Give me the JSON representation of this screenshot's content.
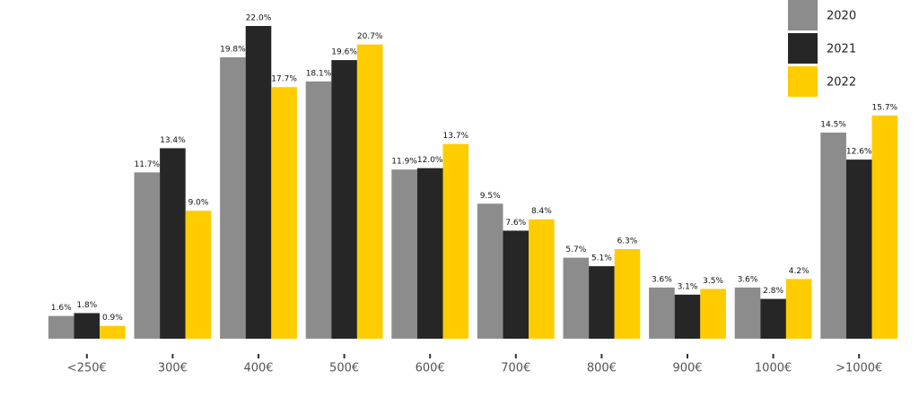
{
  "chart_data": {
    "type": "bar",
    "categories": [
      "<250€",
      "300€",
      "400€",
      "500€",
      "600€",
      "700€",
      "800€",
      "900€",
      "1000€",
      ">1000€"
    ],
    "series": [
      {
        "name": "2020",
        "color": "#8c8c8c",
        "values": [
          1.6,
          11.7,
          19.8,
          18.1,
          11.9,
          9.5,
          5.7,
          3.6,
          3.6,
          14.5
        ],
        "value_labels": [
          "1.6%",
          "11.7%",
          "19.8%",
          "18.1%",
          "11.9%",
          "9.5%",
          "5.7%",
          "3.6%",
          "3.6%",
          "14.5%"
        ]
      },
      {
        "name": "2021",
        "color": "#262626",
        "values": [
          1.8,
          13.4,
          22.0,
          19.6,
          12.0,
          7.6,
          5.1,
          3.1,
          2.8,
          12.6
        ],
        "value_labels": [
          "1.8%",
          "13.4%",
          "22.0%",
          "19.6%",
          "12.0%",
          "7.6%",
          "5.1%",
          "3.1%",
          "2.8%",
          "12.6%"
        ]
      },
      {
        "name": "2022",
        "color": "#ffcc00",
        "values": [
          0.9,
          9.0,
          17.7,
          20.7,
          13.7,
          8.4,
          6.3,
          3.5,
          4.2,
          15.7
        ],
        "value_labels": [
          "0.9%",
          "9.0%",
          "17.7%",
          "20.7%",
          "13.7%",
          "8.4%",
          "6.3%",
          "3.5%",
          "4.2%",
          "15.7%"
        ]
      }
    ],
    "legend": "top-right"
  }
}
